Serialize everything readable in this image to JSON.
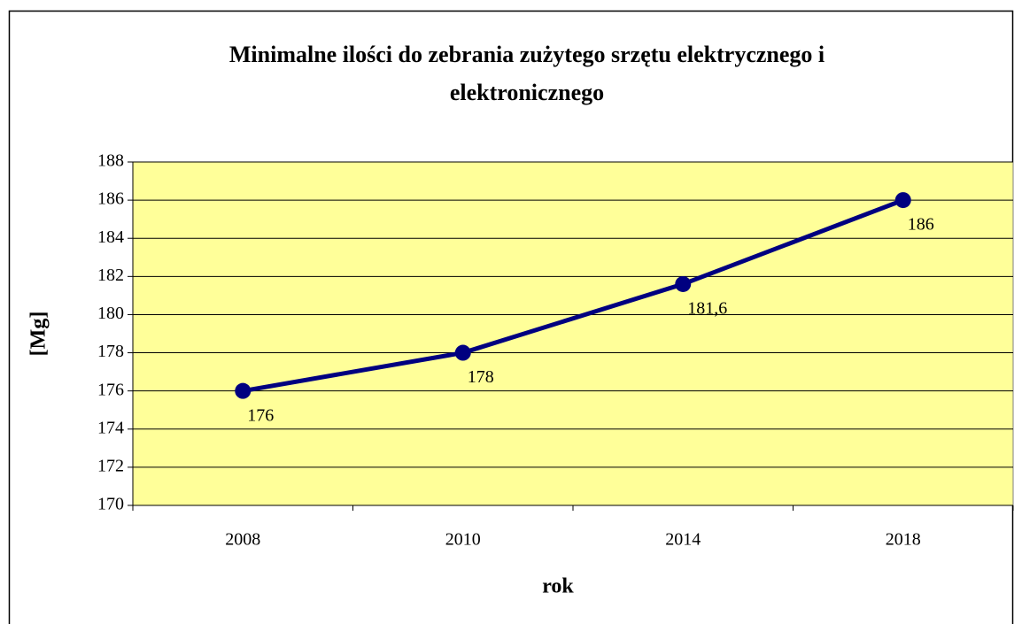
{
  "chart_data": {
    "type": "line",
    "title": "Minimalne ilości do zebrania zużytego srzętu elektrycznego i elektronicznego",
    "xlabel": "rok",
    "ylabel": "[Mg]",
    "categories": [
      "2008",
      "2010",
      "2014",
      "2018"
    ],
    "series": [
      {
        "name": "Minimalne ilości",
        "color": "#000080",
        "values": [
          176,
          178,
          181.6,
          186
        ],
        "value_labels": [
          "176",
          "178",
          "181,6",
          "186"
        ]
      }
    ],
    "ylim": [
      170,
      188
    ],
    "yticks": [
      170,
      172,
      174,
      176,
      178,
      180,
      182,
      184,
      186,
      188
    ],
    "grid": true,
    "plot_background": "#ffff99"
  }
}
